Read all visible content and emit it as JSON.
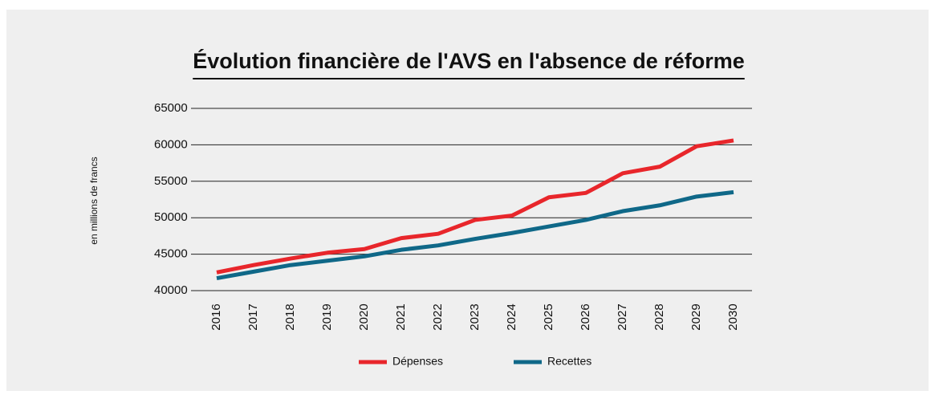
{
  "chart_data": {
    "type": "line",
    "title": "Évolution financière de l'AVS en l'absence de réforme",
    "y_label": "en millions de francs",
    "categories": [
      "2016",
      "2017",
      "2018",
      "2019",
      "2020",
      "2021",
      "2022",
      "2023",
      "2024",
      "2025",
      "2026",
      "2027",
      "2028",
      "2029",
      "2030"
    ],
    "series": [
      {
        "name": "Dépenses",
        "color": "#e8262b",
        "values": [
          42500,
          43500,
          44400,
          45200,
          45700,
          47200,
          47800,
          49700,
          50300,
          52800,
          53400,
          56100,
          57000,
          59800,
          60600
        ]
      },
      {
        "name": "Recettes",
        "color": "#0f6888",
        "values": [
          41700,
          42600,
          43500,
          44100,
          44700,
          45600,
          46200,
          47100,
          47900,
          48800,
          49700,
          50900,
          51700,
          52900,
          53500
        ]
      }
    ],
    "ylim": [
      40000,
      65000
    ],
    "yticks": [
      40000,
      45000,
      50000,
      55000,
      60000,
      65000
    ],
    "grid": true,
    "legend": "bottom"
  }
}
